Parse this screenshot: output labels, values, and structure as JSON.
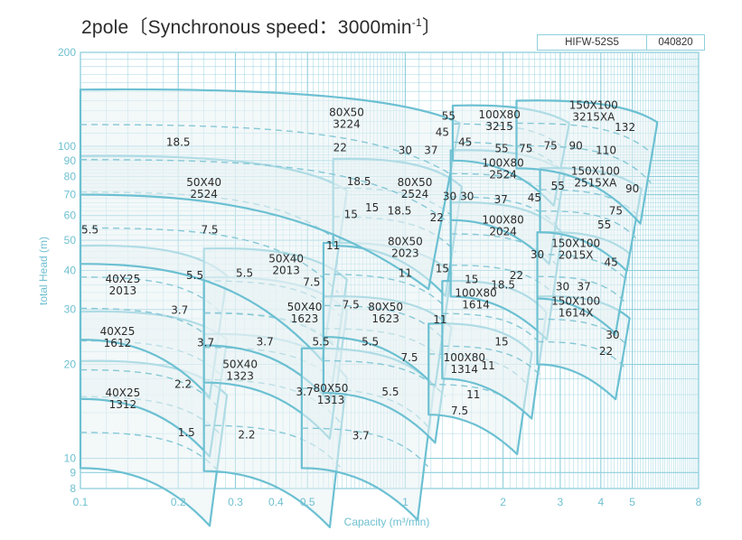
{
  "title": {
    "main": "2pole〔Synchronous speed：3000min",
    "sup": "-1",
    "close": "〕"
  },
  "code_box": {
    "model": "HIFW-52S5",
    "date": "040820"
  },
  "colors": {
    "grid": "#8fcfdc",
    "envelope": "#6cc0d2",
    "curve": "#86c8d6",
    "shade": "#eaf2f4",
    "text": "#2a2a2a",
    "tick": "#6fc0d0"
  },
  "chart_data": {
    "type": "area",
    "xlabel": "Capacity (m³/min)",
    "ylabel": "total Head (m)",
    "x_scale": "log",
    "y_scale": "log",
    "xlim": [
      0.1,
      8
    ],
    "ylim": [
      8,
      200
    ],
    "grid": true,
    "x_ticks": [
      {
        "v": 0.1,
        "label": "0.1"
      },
      {
        "v": 0.2,
        "label": "0.2"
      },
      {
        "v": 0.3,
        "label": "0.3"
      },
      {
        "v": 0.4,
        "label": "0.4"
      },
      {
        "v": 0.5,
        "label": "0.5"
      },
      {
        "v": 1,
        "label": "1"
      },
      {
        "v": 2,
        "label": "2"
      },
      {
        "v": 3,
        "label": "3"
      },
      {
        "v": 4,
        "label": "4"
      },
      {
        "v": 5,
        "label": "5"
      },
      {
        "v": 8,
        "label": "8"
      }
    ],
    "y_ticks": [
      {
        "v": 8,
        "label": "8"
      },
      {
        "v": 9,
        "label": "9"
      },
      {
        "v": 10,
        "label": "10"
      },
      {
        "v": 20,
        "label": "20"
      },
      {
        "v": 30,
        "label": "30"
      },
      {
        "v": 40,
        "label": "40"
      },
      {
        "v": 50,
        "label": "50"
      },
      {
        "v": 60,
        "label": "60"
      },
      {
        "v": 70,
        "label": "70"
      },
      {
        "v": 80,
        "label": "80"
      },
      {
        "v": 90,
        "label": "90"
      },
      {
        "v": 100,
        "label": "100"
      },
      {
        "v": 200,
        "label": "200"
      }
    ],
    "pumps": [
      {
        "model": "40X25\n1312",
        "q0": 0.1,
        "q1": 0.265,
        "h_top": 20.5,
        "h_bot": 9.3,
        "label_at": [
          0.135,
          15.8
        ],
        "kw": [
          {
            "t": "2.2",
            "q": 0.207,
            "h": 17.3
          },
          {
            "t": "1.5",
            "q": 0.212,
            "h": 12.1
          }
        ]
      },
      {
        "model": "40X25\n1612",
        "q0": 0.1,
        "q1": 0.265,
        "h_top": 29.5,
        "h_bot": 15.5,
        "label_at": [
          0.13,
          24.8
        ],
        "kw": [
          {
            "t": "3.7",
            "q": 0.243,
            "h": 23.5
          }
        ]
      },
      {
        "model": "40X25\n2013",
        "q0": 0.1,
        "q1": 0.265,
        "h_top": 48,
        "h_bot": 24,
        "label_at": [
          0.135,
          36.5
        ],
        "kw": [
          {
            "t": "5.5",
            "q": 0.225,
            "h": 38.5
          },
          {
            "t": "3.7",
            "q": 0.202,
            "h": 29.8
          }
        ]
      },
      {
        "model": "50X40\n1323",
        "q0": 0.24,
        "q1": 0.62,
        "h_top": 25,
        "h_bot": 9.1,
        "label_at": [
          0.31,
          19.5
        ],
        "kw": [
          {
            "t": "3.7",
            "q": 0.37,
            "h": 23.6
          },
          {
            "t": "3.7",
            "q": 0.49,
            "h": 16.3
          },
          {
            "t": "2.2",
            "q": 0.325,
            "h": 11.9
          }
        ]
      },
      {
        "model": "50X40\n1623",
        "q0": 0.24,
        "q1": 0.62,
        "h_top": 38,
        "h_bot": 17.5,
        "label_at": [
          0.49,
          29.7
        ],
        "kw": [
          {
            "t": "7.5",
            "q": 0.515,
            "h": 36.7
          },
          {
            "t": "5.5",
            "q": 0.55,
            "h": 23.6
          }
        ]
      },
      {
        "model": "50X40\n2013",
        "q0": 0.24,
        "q1": 0.62,
        "h_top": 47,
        "h_bot": 23,
        "label_at": [
          0.43,
          42.5
        ],
        "kw": [
          {
            "t": "5.5",
            "q": 0.32,
            "h": 39.2
          }
        ]
      },
      {
        "model": "50X40\n2524",
        "q0": 0.1,
        "q1": 0.62,
        "h_top": 93,
        "h_bot": 42,
        "label_at": [
          0.24,
          74.5
        ],
        "kw": [
          {
            "t": "7.5",
            "q": 0.25,
            "h": 54
          },
          {
            "t": "5.5",
            "q": 0.107,
            "h": 54
          },
          {
            "t": "11",
            "q": 0.6,
            "h": 48
          }
        ]
      },
      {
        "model": "80X50\n1313",
        "q0": 0.48,
        "q1": 1.15,
        "h_top": 22.5,
        "h_bot": 9.3,
        "label_at": [
          0.59,
          16.3
        ],
        "kw": [
          {
            "t": "5.5",
            "q": 0.9,
            "h": 16.3
          },
          {
            "t": "3.7",
            "q": 0.73,
            "h": 11.8
          }
        ]
      },
      {
        "model": "80X50\n1623",
        "q0": 0.56,
        "q1": 1.3,
        "h_top": 33,
        "h_bot": 16.2,
        "label_at": [
          0.87,
          29.7
        ],
        "kw": [
          {
            "t": "7.5",
            "q": 0.68,
            "h": 31
          },
          {
            "t": "5.5",
            "q": 0.78,
            "h": 23.6
          },
          {
            "t": "7.5",
            "q": 1.03,
            "h": 21
          },
          {
            "t": "11",
            "q": 1.28,
            "h": 27.8
          }
        ]
      },
      {
        "model": "80X50\n2023",
        "q0": 0.56,
        "q1": 1.3,
        "h_top": 49,
        "h_bot": 24.5,
        "label_at": [
          1.0,
          48.2
        ],
        "kw": [
          {
            "t": "11",
            "q": 1.0,
            "h": 39.2
          },
          {
            "t": "15",
            "q": 1.3,
            "h": 40.5
          }
        ]
      },
      {
        "model": "80X50\n2524",
        "q0": 0.6,
        "q1": 1.4,
        "h_top": 91,
        "h_bot": 48,
        "label_at": [
          1.07,
          74.5
        ],
        "kw": [
          {
            "t": "15",
            "q": 0.68,
            "h": 60.5
          },
          {
            "t": "15",
            "q": 0.79,
            "h": 63.5
          },
          {
            "t": "18.5",
            "q": 0.96,
            "h": 62.2
          },
          {
            "t": "22",
            "q": 1.25,
            "h": 59
          },
          {
            "t": "30",
            "q": 1.37,
            "h": 69
          }
        ]
      },
      {
        "model": "80X50\n3224",
        "q0": 0.1,
        "q1": 1.38,
        "h_top": 152,
        "h_bot": 70,
        "label_at": [
          0.66,
          125
        ],
        "kw": [
          {
            "t": "18.5",
            "q": 0.2,
            "h": 103
          },
          {
            "t": "22",
            "q": 0.63,
            "h": 99
          },
          {
            "t": "18.5",
            "q": 0.72,
            "h": 77
          }
        ]
      },
      {
        "model": "100X80\n1314",
        "q0": 1.18,
        "q1": 2.3,
        "h_top": 27,
        "h_bot": 13.8,
        "label_at": [
          1.52,
          20.5
        ],
        "kw": [
          {
            "t": "11",
            "q": 1.8,
            "h": 19.8
          },
          {
            "t": "11",
            "q": 1.62,
            "h": 16
          },
          {
            "t": "7.5",
            "q": 1.47,
            "h": 14.2
          }
        ]
      },
      {
        "model": "100X80\n1614",
        "q0": 1.3,
        "q1": 2.55,
        "h_top": 37,
        "h_bot": 18,
        "label_at": [
          1.65,
          33
        ],
        "kw": [
          {
            "t": "15",
            "q": 1.6,
            "h": 37.4
          },
          {
            "t": "18.5",
            "q": 2.0,
            "h": 36
          },
          {
            "t": "22",
            "q": 2.2,
            "h": 38.5
          },
          {
            "t": "15",
            "q": 1.98,
            "h": 23.6
          }
        ]
      },
      {
        "model": "100X80\n2024",
        "q0": 1.38,
        "q1": 2.85,
        "h_top": 66,
        "h_bot": 33,
        "label_at": [
          2.0,
          56.5
        ],
        "kw": [
          {
            "t": "30",
            "q": 1.55,
            "h": 69
          },
          {
            "t": "37",
            "q": 1.97,
            "h": 67.5
          },
          {
            "t": "45",
            "q": 2.5,
            "h": 68.5
          },
          {
            "t": "30",
            "q": 2.55,
            "h": 45
          }
        ]
      },
      {
        "model": "100X80\n2524",
        "q0": 1.38,
        "q1": 2.9,
        "h_top": 97,
        "h_bot": 58,
        "label_at": [
          2.0,
          86
        ]
      },
      {
        "model": "100X80\n3215",
        "q0": 1.4,
        "q1": 3.0,
        "h_top": 135,
        "h_bot": 90,
        "label_at": [
          1.95,
          123
        ],
        "kw": [
          {
            "t": "55",
            "q": 1.36,
            "h": 125
          },
          {
            "t": "45",
            "q": 1.3,
            "h": 111
          },
          {
            "t": "45",
            "q": 1.53,
            "h": 103
          },
          {
            "t": "30",
            "q": 1.0,
            "h": 97
          },
          {
            "t": "37",
            "q": 1.2,
            "h": 97
          },
          {
            "t": "55",
            "q": 1.98,
            "h": 98.5
          },
          {
            "t": "75",
            "q": 2.35,
            "h": 98.5
          }
        ]
      },
      {
        "model": "150X100\n1614X",
        "q0": 2.55,
        "q1": 4.6,
        "h_top": 33,
        "h_bot": 20,
        "label_at": [
          3.35,
          31
        ],
        "kw": [
          {
            "t": "30",
            "q": 4.35,
            "h": 24.8
          },
          {
            "t": "22",
            "q": 4.15,
            "h": 22
          }
        ]
      },
      {
        "model": "150X100\n2015X",
        "q0": 2.55,
        "q1": 4.6,
        "h_top": 53,
        "h_bot": 32.5,
        "label_at": [
          3.35,
          47.5
        ],
        "kw": [
          {
            "t": "30",
            "q": 3.05,
            "h": 35.5
          },
          {
            "t": "37",
            "q": 3.55,
            "h": 35.5
          },
          {
            "t": "45",
            "q": 4.3,
            "h": 42.5
          }
        ]
      },
      {
        "model": "150X100\n2515XA",
        "q0": 2.6,
        "q1": 5.0,
        "h_top": 85,
        "h_bot": 53,
        "label_at": [
          3.85,
          81
        ],
        "kw": [
          {
            "t": "55",
            "q": 2.95,
            "h": 74.5
          },
          {
            "t": "55",
            "q": 4.1,
            "h": 56
          },
          {
            "t": "75",
            "q": 4.45,
            "h": 62
          },
          {
            "t": "90",
            "q": 5.0,
            "h": 73
          }
        ]
      },
      {
        "model": "150X100\n3215XA",
        "q0": 2.2,
        "q1": 5.6,
        "h_top": 140,
        "h_bot": 85,
        "label_at": [
          3.8,
          132
        ],
        "kw": [
          {
            "t": "75",
            "q": 2.8,
            "h": 100.5
          },
          {
            "t": "90",
            "q": 3.35,
            "h": 100.5
          },
          {
            "t": "110",
            "q": 4.15,
            "h": 97
          },
          {
            "t": "132",
            "q": 4.75,
            "h": 115
          }
        ]
      }
    ]
  }
}
